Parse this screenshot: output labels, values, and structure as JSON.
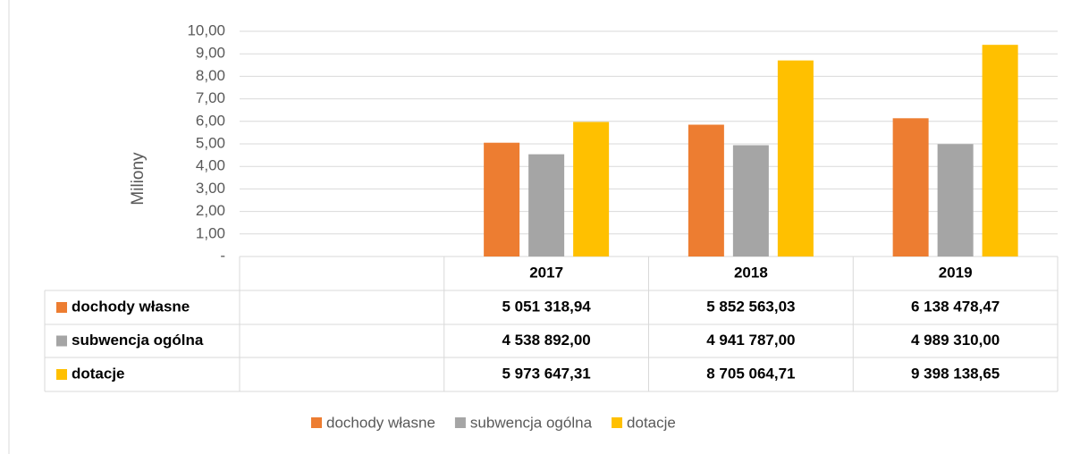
{
  "chart_data": {
    "type": "bar",
    "y_label": "Miliony",
    "categories": [
      null,
      "2017",
      "2018",
      "2019"
    ],
    "series": [
      {
        "name": "dochody własne",
        "color": "#ed7d31",
        "values": [
          null,
          5.05131894,
          5.85256303,
          6.13847847
        ],
        "value_labels": [
          null,
          "5 051 318,94",
          "5 852 563,03",
          "6 138 478,47"
        ]
      },
      {
        "name": "subwencja ogólna",
        "color": "#a5a5a5",
        "values": [
          null,
          4.538892,
          4.941787,
          4.98931
        ],
        "value_labels": [
          null,
          "4 538 892,00",
          "4 941 787,00",
          "4 989 310,00"
        ]
      },
      {
        "name": "dotacje",
        "color": "#ffc000",
        "values": [
          null,
          5.97364731,
          8.70506471,
          9.39813865
        ],
        "value_labels": [
          null,
          "5 973 647,31",
          "8 705 064,71",
          "9 398 138,65"
        ]
      }
    ],
    "ylim": [
      0,
      10
    ],
    "yticks": [
      {
        "value": 0,
        "label": "-"
      },
      {
        "value": 1,
        "label": "1,00"
      },
      {
        "value": 2,
        "label": "2,00"
      },
      {
        "value": 3,
        "label": "3,00"
      },
      {
        "value": 4,
        "label": "4,00"
      },
      {
        "value": 5,
        "label": "5,00"
      },
      {
        "value": 6,
        "label": "6,00"
      },
      {
        "value": 7,
        "label": "7,00"
      },
      {
        "value": 8,
        "label": "8,00"
      },
      {
        "value": 9,
        "label": "9,00"
      },
      {
        "value": 10,
        "label": "10,00"
      }
    ],
    "grid": true,
    "legend": "bottom"
  }
}
